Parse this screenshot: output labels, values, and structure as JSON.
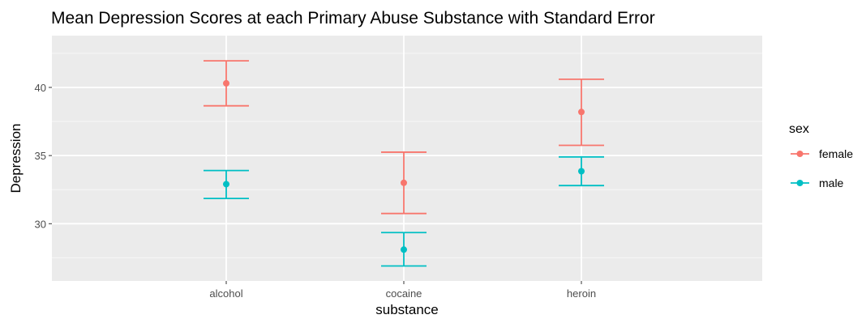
{
  "chart_data": {
    "type": "errorbar",
    "title": "Mean Depression Scores at each Primary Abuse Substance with Standard Error",
    "xlabel": "substance",
    "ylabel": "Depression",
    "categories": [
      "alcohol",
      "cocaine",
      "heroin"
    ],
    "yticks": [
      30,
      35,
      40
    ],
    "ylim": [
      25.8,
      43.8
    ],
    "grid": true,
    "legend": {
      "title": "sex",
      "placement": "right"
    },
    "series": [
      {
        "name": "female",
        "color": "#F8766D",
        "mean": [
          40.3,
          33.0,
          38.2
        ],
        "lower": [
          38.65,
          30.75,
          35.75
        ],
        "upper": [
          41.95,
          35.25,
          40.6
        ]
      },
      {
        "name": "male",
        "color": "#00BFC4",
        "mean": [
          32.9,
          28.1,
          33.85
        ],
        "lower": [
          31.85,
          26.9,
          32.8
        ],
        "upper": [
          33.9,
          29.35,
          34.9
        ]
      }
    ]
  }
}
